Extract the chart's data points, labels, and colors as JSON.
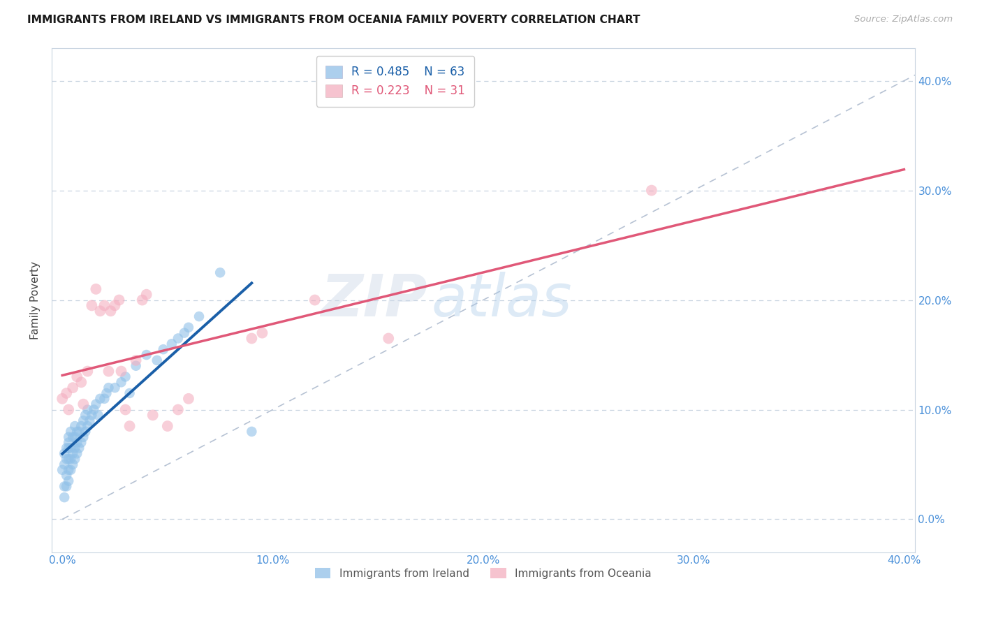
{
  "title": "IMMIGRANTS FROM IRELAND VS IMMIGRANTS FROM OCEANIA FAMILY POVERTY CORRELATION CHART",
  "source": "Source: ZipAtlas.com",
  "ylabel": "Family Poverty",
  "blue_color": "#90c0e8",
  "pink_color": "#f4afc0",
  "blue_line_color": "#1a5fa8",
  "pink_line_color": "#e05878",
  "diag_color": "#aab8cc",
  "label_blue": "Immigrants from Ireland",
  "label_pink": "Immigrants from Oceania",
  "blue_R": 0.485,
  "blue_N": 63,
  "pink_R": 0.223,
  "pink_N": 31,
  "watermark_zip": "ZIP",
  "watermark_atlas": "atlas",
  "blue_x": [
    0.0,
    0.001,
    0.001,
    0.001,
    0.001,
    0.002,
    0.002,
    0.002,
    0.002,
    0.003,
    0.003,
    0.003,
    0.003,
    0.003,
    0.003,
    0.004,
    0.004,
    0.004,
    0.004,
    0.005,
    0.005,
    0.005,
    0.006,
    0.006,
    0.006,
    0.006,
    0.007,
    0.007,
    0.007,
    0.008,
    0.008,
    0.009,
    0.009,
    0.01,
    0.01,
    0.011,
    0.011,
    0.012,
    0.012,
    0.013,
    0.014,
    0.015,
    0.016,
    0.017,
    0.018,
    0.02,
    0.021,
    0.022,
    0.025,
    0.028,
    0.03,
    0.032,
    0.035,
    0.04,
    0.045,
    0.048,
    0.052,
    0.055,
    0.058,
    0.06,
    0.065,
    0.075,
    0.09
  ],
  "blue_y": [
    0.045,
    0.02,
    0.03,
    0.05,
    0.06,
    0.03,
    0.04,
    0.055,
    0.065,
    0.035,
    0.045,
    0.055,
    0.065,
    0.07,
    0.075,
    0.045,
    0.055,
    0.065,
    0.08,
    0.05,
    0.06,
    0.075,
    0.055,
    0.065,
    0.075,
    0.085,
    0.06,
    0.07,
    0.08,
    0.065,
    0.08,
    0.07,
    0.085,
    0.075,
    0.09,
    0.08,
    0.095,
    0.085,
    0.1,
    0.09,
    0.095,
    0.1,
    0.105,
    0.095,
    0.11,
    0.11,
    0.115,
    0.12,
    0.12,
    0.125,
    0.13,
    0.115,
    0.14,
    0.15,
    0.145,
    0.155,
    0.16,
    0.165,
    0.17,
    0.175,
    0.185,
    0.225,
    0.08
  ],
  "pink_x": [
    0.0,
    0.002,
    0.003,
    0.005,
    0.007,
    0.009,
    0.01,
    0.012,
    0.014,
    0.016,
    0.018,
    0.02,
    0.022,
    0.023,
    0.025,
    0.027,
    0.028,
    0.03,
    0.032,
    0.035,
    0.038,
    0.04,
    0.043,
    0.05,
    0.055,
    0.06,
    0.09,
    0.095,
    0.12,
    0.155,
    0.28
  ],
  "pink_y": [
    0.11,
    0.115,
    0.1,
    0.12,
    0.13,
    0.125,
    0.105,
    0.135,
    0.195,
    0.21,
    0.19,
    0.195,
    0.135,
    0.19,
    0.195,
    0.2,
    0.135,
    0.1,
    0.085,
    0.145,
    0.2,
    0.205,
    0.095,
    0.085,
    0.1,
    0.11,
    0.165,
    0.17,
    0.2,
    0.165,
    0.3
  ]
}
